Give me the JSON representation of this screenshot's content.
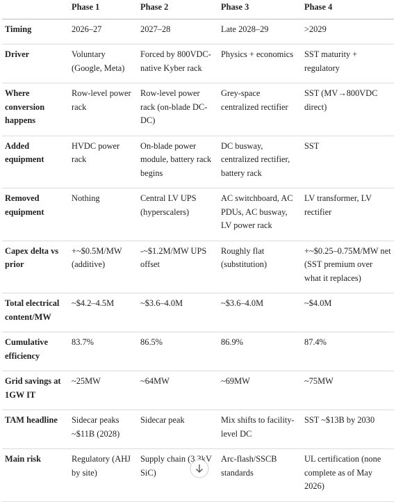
{
  "table": {
    "header": [
      "Phase 1",
      "Phase 2",
      "Phase 3",
      "Phase 4"
    ],
    "rows": [
      [
        "Timing",
        "2026–27",
        "2027–28",
        "Late 2028–29",
        ">2029"
      ],
      [
        "Driver",
        "Voluntary (Google, Meta)",
        "Forced by 800VDC-native Kyber rack",
        "Physics + economics",
        "SST maturity + regulatory"
      ],
      [
        "Where conversion happens",
        "Row-level power rack",
        "Row-level power rack (on-blade DC-DC)",
        "Grey-space centralized rectifier",
        "SST (MV→800VDC direct)"
      ],
      [
        "Added equipment",
        "HVDC power rack",
        "On-blade power module, battery rack begins",
        "DC busway, centralized rectifier, battery rack",
        "SST"
      ],
      [
        "Removed equipment",
        "Nothing",
        "Central LV UPS (hyperscalers)",
        "AC switchboard, AC PDUs, AC busway, LV power rack",
        "LV transformer, LV rectifier"
      ],
      [
        "Capex delta vs prior",
        "+~$0.5M/MW (additive)",
        "-~$1.2M/MW UPS offset",
        "Roughly flat (substitution)",
        "+~$0.25–0.75M/MW net (SST premium over what it replaces)"
      ],
      [
        "Total electrical content/MW",
        "~$4.2–4.5M",
        "~$3.6–4.0M",
        "~$3.6–4.0M",
        "~$4.0M"
      ],
      [
        "Cumulative efficiency",
        "83.7%",
        "86.5%",
        "86.9%",
        "87.4%"
      ],
      [
        "Grid savings at 1GW IT",
        "~25MW",
        "~64MW",
        "~69MW",
        "~75MW"
      ],
      [
        "TAM headline",
        "Sidecar peaks ~$11B (2028)",
        "Sidecar peak",
        "Mix shifts to facility-level DC",
        "SST ~$13B by 2030"
      ],
      [
        "Main risk",
        "Regulatory (AHJ by site)",
        "Supply chain (3.3kV SiC)",
        "Arc-flash/SSCB standards",
        "UL certification (none complete as of May 2026)"
      ]
    ]
  }
}
